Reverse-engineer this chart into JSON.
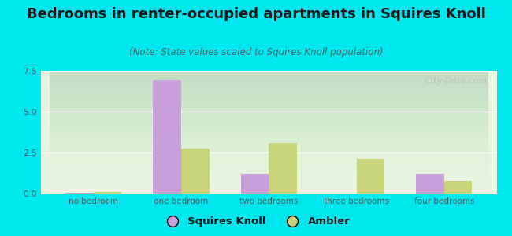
{
  "title": "Bedrooms in renter-occupied apartments in Squires Knoll",
  "subtitle": "(Note: State values scaled to Squires Knoll population)",
  "categories": [
    "no bedroom",
    "one bedroom",
    "two bedrooms",
    "three bedrooms",
    "four bedrooms"
  ],
  "squires_knoll": [
    0.05,
    6.9,
    1.2,
    0.0,
    1.2
  ],
  "ambler": [
    0.1,
    2.75,
    3.1,
    2.1,
    0.75
  ],
  "squires_knoll_color": "#c9a0dc",
  "ambler_color": "#c8d47a",
  "background_outer": "#00e8ef",
  "background_plot_top": "#e8f5e0",
  "background_plot_bottom": "#f5faf0",
  "ylim": [
    0,
    7.5
  ],
  "yticks": [
    0,
    2.5,
    5,
    7.5
  ],
  "bar_width": 0.32,
  "title_fontsize": 13,
  "subtitle_fontsize": 8.5,
  "watermark": "City-Data.com",
  "title_color": "#1a1a1a",
  "subtitle_color": "#446666",
  "tick_color": "#555555",
  "legend_label_sk": "Squires Knoll",
  "legend_label_am": "Ambler"
}
